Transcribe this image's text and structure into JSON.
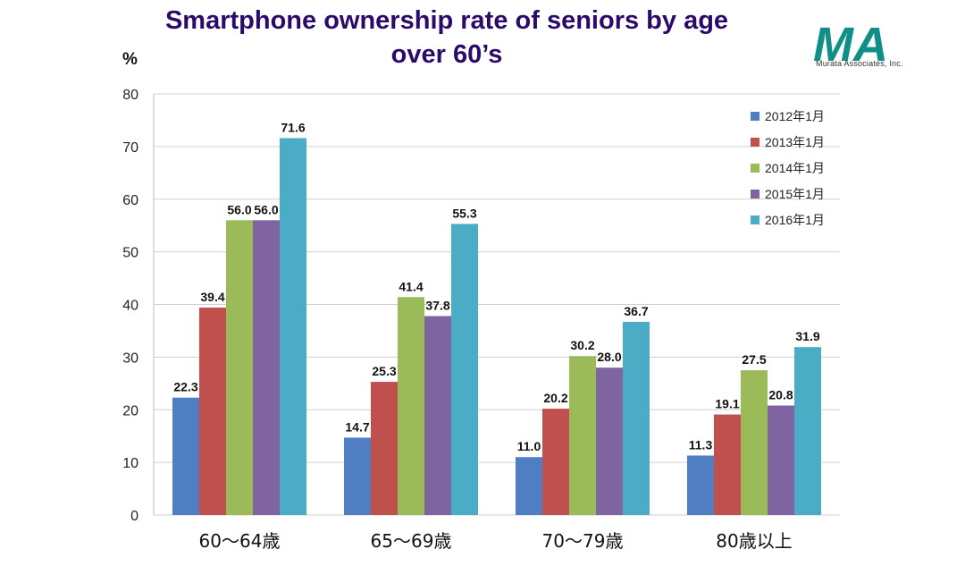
{
  "title_line1": "Smartphone ownership rate of seniors by age",
  "title_line2": "over 60’s",
  "logo": {
    "mark": "MA",
    "company": "Murata Associates, Inc."
  },
  "chart_data": {
    "type": "bar",
    "title": "Smartphone ownership rate of seniors by age over 60’s",
    "ylabel": "%",
    "xlabel": "",
    "ylim": [
      0,
      80
    ],
    "yticks": [
      0,
      10,
      20,
      30,
      40,
      50,
      60,
      70,
      80
    ],
    "grid": true,
    "legend_position": "top-right",
    "categories": [
      "60～64歳",
      "65～69歳",
      "70～79歳",
      "80歳以上"
    ],
    "series": [
      {
        "name": "2012年1月",
        "color": "#4f7ec4",
        "values": [
          22.3,
          14.7,
          11.0,
          11.3
        ]
      },
      {
        "name": "2013年1月",
        "color": "#c0504d",
        "values": [
          39.4,
          25.3,
          20.2,
          19.1
        ]
      },
      {
        "name": "2014年1月",
        "color": "#9bbb59",
        "values": [
          56.0,
          41.4,
          30.2,
          27.5
        ]
      },
      {
        "name": "2015年1月",
        "color": "#8064a2",
        "values": [
          56.0,
          37.8,
          28.0,
          20.8
        ]
      },
      {
        "name": "2016年1月",
        "color": "#4bacc6",
        "values": [
          71.6,
          55.3,
          36.7,
          31.9
        ]
      }
    ]
  }
}
